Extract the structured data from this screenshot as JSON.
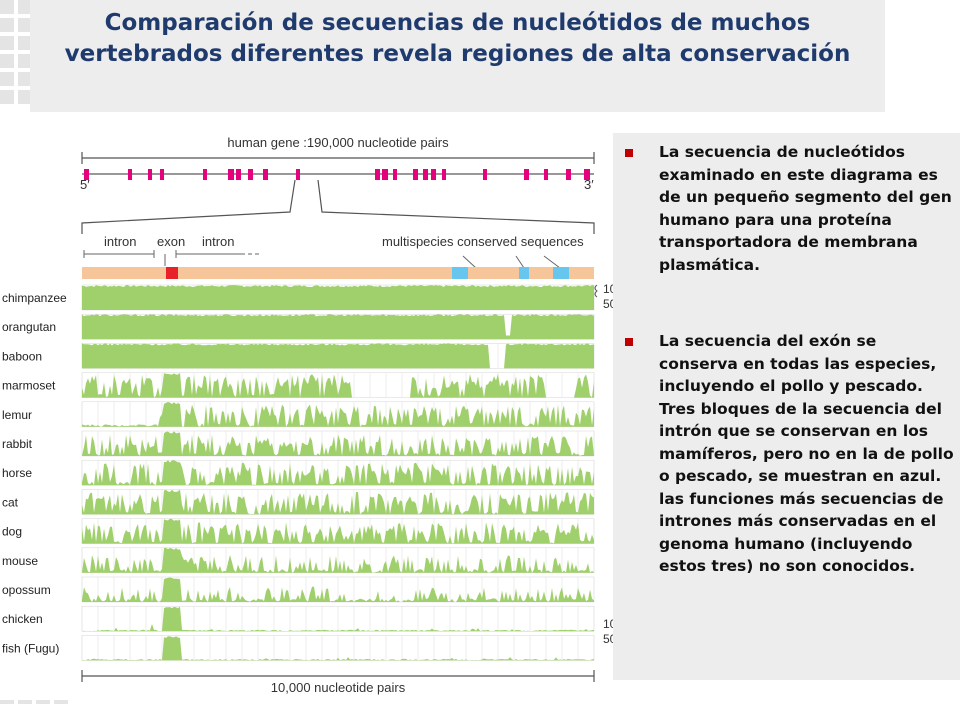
{
  "title": "Comparación de secuencias de nucleótidos de muchos vertebrados diferentes revela regiones de alta conservación",
  "figure": {
    "gene_label": "human gene :190,000 nucleotide pairs",
    "five_prime": "5′",
    "three_prime": "3′",
    "labels": {
      "intron1": "intron",
      "exon": "exon",
      "intron2": "intron",
      "conserved": "multispecies conserved sequences"
    },
    "species": [
      "chimpanzee",
      "orangutan",
      "baboon",
      "marmoset",
      "lemur",
      "rabbit",
      "horse",
      "cat",
      "dog",
      "mouse",
      "opossum",
      "chicken",
      "fish (Fugu)"
    ],
    "scale_top_100": "10",
    "scale_top_50": "50",
    "scale_bottom_100": "10",
    "scale_bottom_50": "50",
    "scale_bar": "10,000 nucleotide pairs",
    "colors": {
      "track": "#9fd06b",
      "exon": "#e8202a",
      "conserved": "#66c6ee",
      "strip": "#f7c59a",
      "gene_mark": "#e4007f"
    }
  },
  "bullets": [
    "La secuencia de nucleótidos examinado en este diagrama es de un pequeño segmento del gen humano para una proteína transportadora de membrana plasmática.",
    "La secuencia del exón se conserva en todas las especies, incluyendo el pollo y pescado. Tres bloques de la secuencia del intrón que se conservan en los mamíferos, pero no en la de pollo o pescado, se muestran en azul. las funciones más secuencias de intrones más conservadas en el genoma humano (incluyendo estos tres) no son conocidos."
  ]
}
